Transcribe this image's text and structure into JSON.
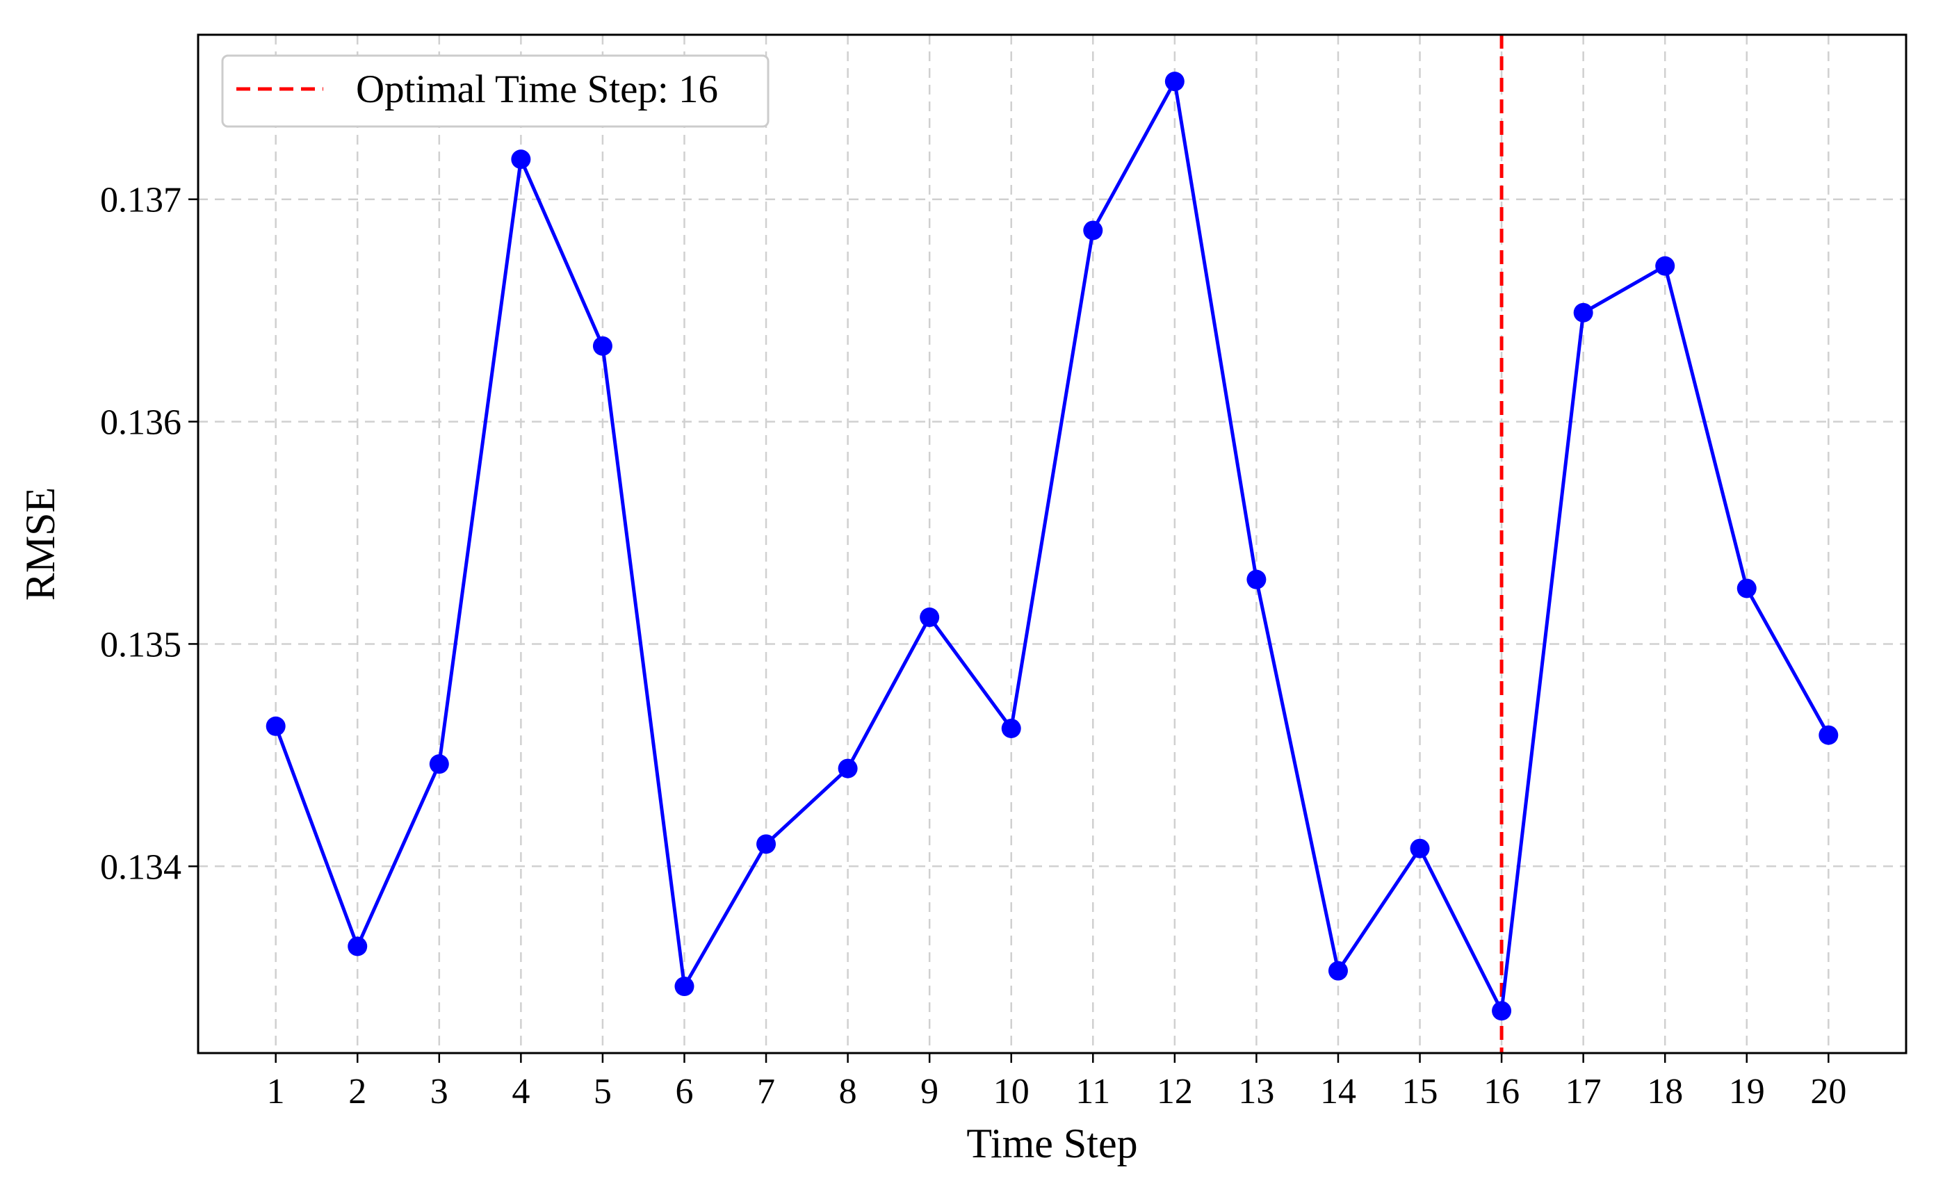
{
  "chart_data": {
    "type": "line",
    "title": "",
    "xlabel": "Time Step",
    "ylabel": "RMSE",
    "x": [
      1,
      2,
      3,
      4,
      5,
      6,
      7,
      8,
      9,
      10,
      11,
      12,
      13,
      14,
      15,
      16,
      17,
      18,
      19,
      20
    ],
    "x_ticks": [
      "1",
      "2",
      "3",
      "4",
      "5",
      "6",
      "7",
      "8",
      "9",
      "10",
      "11",
      "12",
      "13",
      "14",
      "15",
      "16",
      "17",
      "18",
      "19",
      "20"
    ],
    "y_ticks": [
      "0.134",
      "0.135",
      "0.136",
      "0.137"
    ],
    "ylim": [
      0.13316,
      0.13774
    ],
    "xlim": [
      0.05,
      20.95
    ],
    "grid": true,
    "series": [
      {
        "color": "#0000ff",
        "marker": "circle",
        "values": [
          0.13463,
          0.13364,
          0.13446,
          0.13718,
          0.13634,
          0.13346,
          0.1341,
          0.13444,
          0.13512,
          0.13462,
          0.13686,
          0.13753,
          0.13529,
          0.13353,
          0.13408,
          0.13335,
          0.13649,
          0.1367,
          0.13525,
          0.13459
        ]
      }
    ],
    "reference_line": {
      "orientation": "vertical",
      "x": 16,
      "color": "#ff0000",
      "style": "dashed",
      "label": "Optimal Time Step: 16"
    },
    "legend": {
      "position": "top-left",
      "entries": [
        "Optimal Time Step: 16"
      ]
    }
  }
}
